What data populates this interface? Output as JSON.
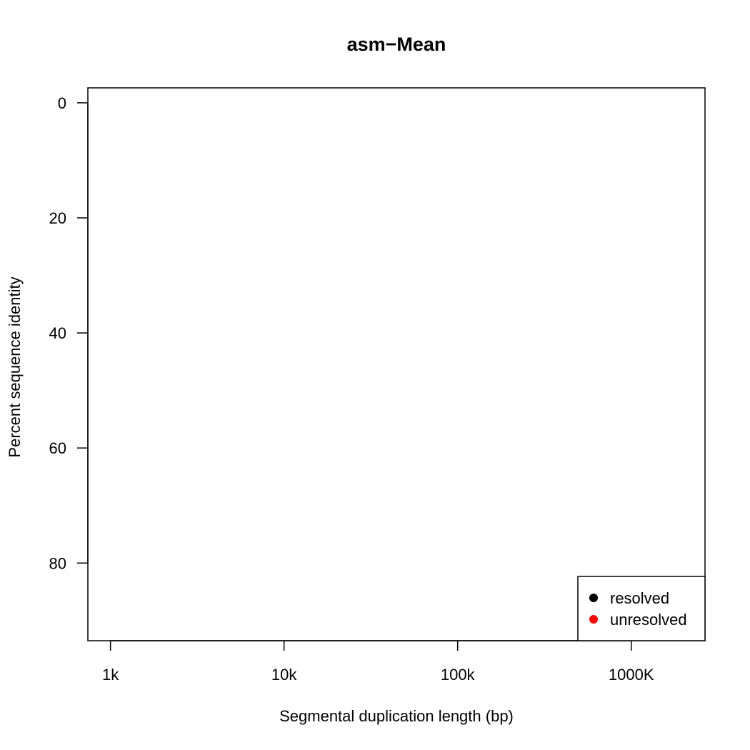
{
  "chart_data": {
    "type": "scatter",
    "title": "asm−Mean",
    "xlabel": "Segmental duplication length (bp)",
    "ylabel": "Percent sequence identity",
    "x_scale": "log",
    "x_ticks": [
      {
        "value": 1000,
        "label": "1k"
      },
      {
        "value": 10000,
        "label": "10k"
      },
      {
        "value": 100000,
        "label": "100k"
      },
      {
        "value": 1000000,
        "label": "1000K"
      }
    ],
    "y_reversed": true,
    "y_ticks": [
      {
        "value": 0,
        "label": "0"
      },
      {
        "value": 20,
        "label": "20"
      },
      {
        "value": 40,
        "label": "40"
      },
      {
        "value": 60,
        "label": "60"
      },
      {
        "value": 80,
        "label": "80"
      }
    ],
    "xlim": [
      741,
      2660000
    ],
    "ylim": [
      -2.6,
      93.5
    ],
    "grid": false,
    "series": [
      {
        "name": "resolved",
        "color": "#000000",
        "points": []
      },
      {
        "name": "unresolved",
        "color": "#ff0000",
        "points": []
      }
    ],
    "legend": {
      "position": "bottom-right",
      "entries": [
        {
          "label": "resolved",
          "color": "#000000"
        },
        {
          "label": "unresolved",
          "color": "#ff0000"
        }
      ]
    }
  }
}
